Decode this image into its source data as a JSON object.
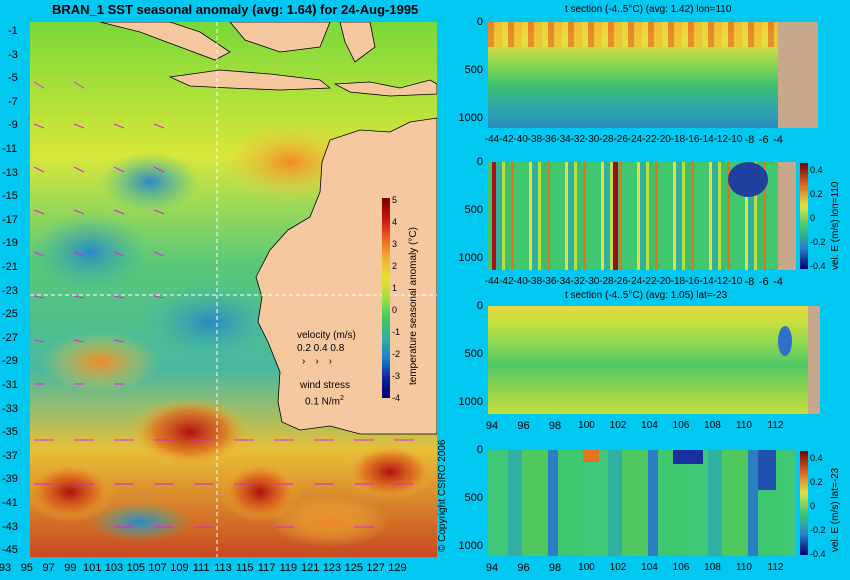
{
  "map": {
    "title": "BRAN_1  SST seasonal anomaly  (avg: 1.64) for 24-Aug-1995",
    "lat_labels": [
      "-1",
      "-3",
      "-5",
      "-7",
      "-9",
      "-11",
      "-13",
      "-15",
      "-17",
      "-19",
      "-21",
      "-23",
      "-25",
      "-27",
      "-29",
      "-31",
      "-33",
      "-35",
      "-37",
      "-39",
      "-41",
      "-43",
      "-45"
    ],
    "lon_labels": [
      "93",
      "95",
      "97",
      "99",
      "101",
      "103",
      "105",
      "107",
      "109",
      "111",
      "113",
      "115",
      "117",
      "119",
      "121",
      "123",
      "125",
      "127",
      "129"
    ],
    "colorbar": {
      "label": "temperature seasonal anomaly (°C)",
      "ticks": [
        "5",
        "4",
        "3",
        "2",
        "1",
        "0",
        "-1",
        "-2",
        "-3",
        "-4"
      ]
    },
    "velocity_label": "velocity (m/s)",
    "velocity_scale": "0.2 0.4 0.8",
    "wind_label": "wind stress",
    "wind_scale": "0.1 N/m",
    "wind_sup": "2",
    "copyright": "© Copyright CSIRO 2006"
  },
  "panels": [
    {
      "title": "t section (-4..5°C) (avg: 1.42) lon=110",
      "y_ticks": [
        "0",
        "500",
        "1000"
      ],
      "x_ticks": [
        "-44",
        "-42",
        "-40",
        "-38",
        "-36",
        "-34",
        "-32",
        "-30",
        "-28",
        "-26",
        "-24",
        "-22",
        "-20",
        "-18",
        "-16",
        "-14",
        "-12",
        "-10",
        "-8",
        "-6",
        "-4"
      ]
    },
    {
      "title": "",
      "y_ticks": [
        "0",
        "500",
        "1000"
      ],
      "x_ticks": [
        "-44",
        "-42",
        "-40",
        "-38",
        "-36",
        "-34",
        "-32",
        "-30",
        "-28",
        "-26",
        "-24",
        "-22",
        "-20",
        "-18",
        "-16",
        "-14",
        "-12",
        "-10",
        "-8",
        "-6",
        "-4"
      ],
      "cb_label": "vel. E (m/s) lon=110",
      "cb_ticks": [
        "0.4",
        "0.2",
        "0",
        "-0.2",
        "-0.4"
      ]
    },
    {
      "title": "t section (-4..5°C) (avg: 1.05) lat=-23",
      "y_ticks": [
        "0",
        "500",
        "1000"
      ],
      "x_ticks": [
        "94",
        "96",
        "98",
        "100",
        "102",
        "104",
        "106",
        "108",
        "110",
        "112"
      ]
    },
    {
      "title": "",
      "y_ticks": [
        "0",
        "500",
        "1000"
      ],
      "x_ticks": [
        "94",
        "96",
        "98",
        "100",
        "102",
        "104",
        "106",
        "108",
        "110",
        "112"
      ],
      "cb_label": "vel. E (m/s) lat=-23",
      "cb_ticks": [
        "0.4",
        "0.2",
        "0",
        "-0.2",
        "-0.4"
      ]
    }
  ]
}
